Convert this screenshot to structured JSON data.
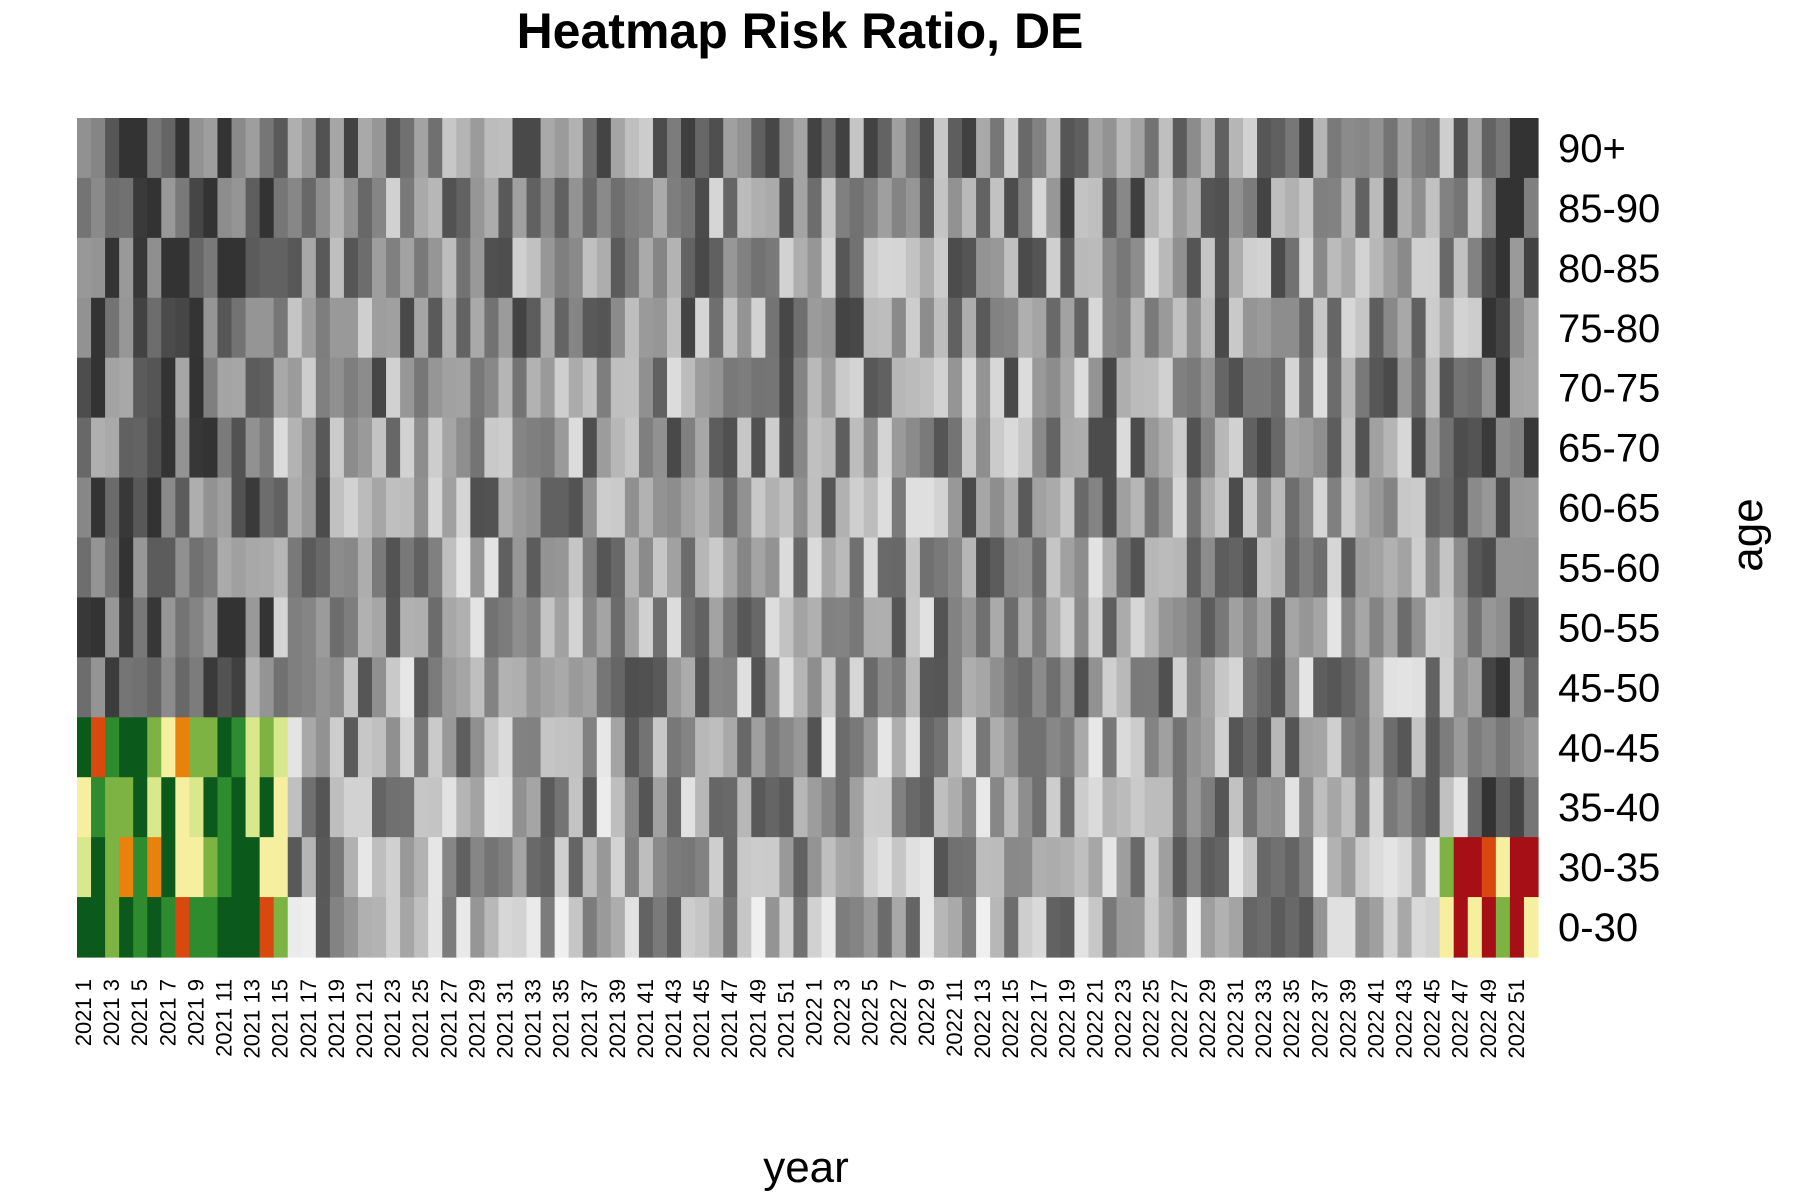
{
  "chart_data": {
    "type": "heatmap",
    "title": "Heatmap Risk Ratio, DE",
    "xlabel": "year",
    "ylabel": "age",
    "rows": [
      "90+",
      "85-90",
      "80-85",
      "75-80",
      "70-75",
      "65-70",
      "60-65",
      "55-60",
      "50-55",
      "45-50",
      "40-45",
      "35-40",
      "30-35",
      "0-30"
    ],
    "x_tick_labels": [
      "2021 1",
      "2021 3",
      "2021 5",
      "2021 7",
      "2021 9",
      "2021 11",
      "2021 13",
      "2021 15",
      "2021 17",
      "2021 19",
      "2021 21",
      "2021 23",
      "2021 25",
      "2021 27",
      "2021 29",
      "2021 31",
      "2021 33",
      "2021 35",
      "2021 37",
      "2021 39",
      "2021 41",
      "2021 43",
      "2021 45",
      "2021 47",
      "2021 49",
      "2021 51",
      "2022 1",
      "2022 3",
      "2022 5",
      "2022 7",
      "2022 9",
      "2022 11",
      "2022 13",
      "2022 15",
      "2022 17",
      "2022 19",
      "2022 21",
      "2022 23",
      "2022 25",
      "2022 27",
      "2022 29",
      "2022 31",
      "2022 33",
      "2022 35",
      "2022 37",
      "2022 39",
      "2022 41",
      "2022 43",
      "2022 45",
      "2022 47",
      "2022 49",
      "2022 51"
    ],
    "periods": {
      "2021": 52,
      "2022": 52
    },
    "colored_cells": {
      "0-30": {
        "2021": [
          1,
          2,
          3,
          4,
          5,
          6,
          7,
          8,
          9,
          10,
          11,
          12,
          13,
          14,
          15
        ],
        "2022": [
          46,
          47,
          48,
          49,
          50,
          51,
          52
        ]
      },
      "30-35": {
        "2021": [
          1,
          2,
          3,
          4,
          5,
          6,
          7,
          8,
          9,
          10,
          11,
          12,
          13,
          14,
          15
        ],
        "2022": [
          46,
          47,
          48,
          49,
          50,
          51,
          52
        ]
      },
      "35-40": {
        "2021": [
          1,
          2,
          3,
          4,
          5,
          6,
          7,
          8,
          9,
          10,
          11,
          12,
          13,
          14,
          15
        ]
      },
      "40-45": {
        "2021": [
          1,
          2,
          3,
          4,
          5,
          6,
          7,
          8,
          9,
          10,
          11,
          12,
          13,
          14,
          15
        ]
      }
    },
    "legend": "none",
    "grid": false,
    "colors": {
      "gray_low": "#f2f2f2",
      "gray_high": "#333333",
      "green_dark": "#0b5a1c",
      "green_mid": "#2e8b2e",
      "green_light": "#7cb342",
      "yellow_pale": "#f7efa0",
      "yellow_green": "#d9e88c",
      "orange": "#e8820c",
      "red_orange": "#d9480f",
      "red_dark": "#a50f15"
    }
  }
}
